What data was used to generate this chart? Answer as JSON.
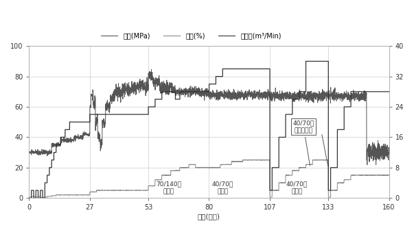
{
  "xlabel": "时间(分钟)",
  "legend": [
    "油压(MPa)",
    "砂比(%)",
    "总清量(m³/Min)"
  ],
  "xlim": [
    0,
    160
  ],
  "ylim_left": [
    0,
    100
  ],
  "ylim_right": [
    0,
    40
  ],
  "xticks": [
    0,
    27,
    53,
    80,
    107,
    133,
    160
  ],
  "yticks_left": [
    0,
    20,
    40,
    60,
    80,
    100
  ],
  "yticks_right": [
    0,
    8,
    16,
    24,
    32,
    40
  ],
  "ytick_labels_left": [
    "0",
    "20",
    "40",
    "60",
    "80",
    "100"
  ],
  "ytick_labels_right": [
    "0",
    "8",
    "16",
    "24",
    "32",
    "40"
  ],
  "grid_color": "#cccccc",
  "background_color": "#ffffff",
  "ann1_text": "70/140目\n石英砂",
  "ann2_text": "40/70目\n石英砂",
  "ann3_text": "40/70目\n石英砂",
  "ann4_text": "40/70目\n树脂覆膜砂"
}
